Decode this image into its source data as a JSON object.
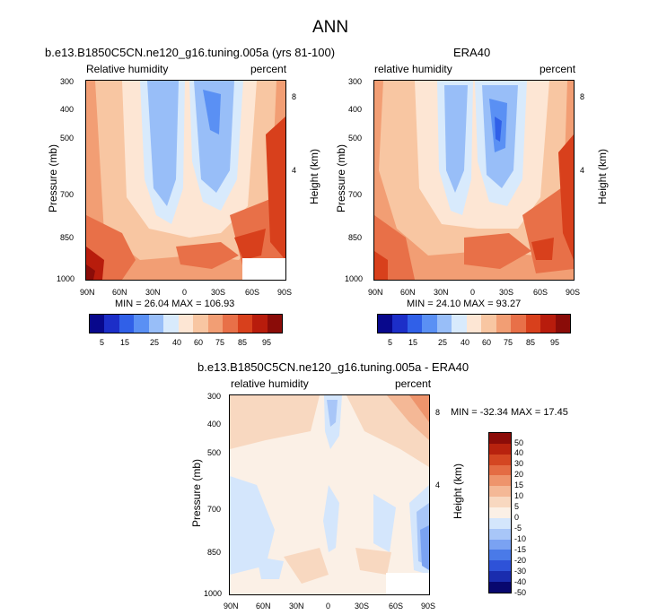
{
  "figure_title": "ANN",
  "colors": {
    "abs_scale": [
      "#08088c",
      "#1c2ec8",
      "#3060e8",
      "#5a90f4",
      "#98bef8",
      "#d8eafc",
      "#fde6d4",
      "#f8c6a2",
      "#f29e74",
      "#e87048",
      "#d8401c",
      "#b81c0c",
      "#8a0c08"
    ],
    "diff_scale": [
      "#08086e",
      "#1a2cae",
      "#2e52d8",
      "#4a7ae8",
      "#7aa2f2",
      "#a8c6f8",
      "#d4e6fc",
      "#fbf0e6",
      "#f8d8c0",
      "#f4b896",
      "#ee946c",
      "#e46c44",
      "#d44622",
      "#b8220e",
      "#8c0c08"
    ]
  },
  "chart_data": [
    {
      "type": "heatmap",
      "panel": "model",
      "title": "b.e13.B1850C5CN.ne120_g16.tuning.005a (yrs 81-100)",
      "left_label": "Relative humidity",
      "right_label": "percent",
      "ylabel": "Pressure (mb)",
      "ylabel_right": "Height (km)",
      "x_ticks": [
        "90N",
        "60N",
        "30N",
        "0",
        "30S",
        "60S",
        "90S"
      ],
      "y_ticks": [
        "300",
        "400",
        "500",
        "700",
        "850",
        "1000"
      ],
      "height_ticks": [
        "8",
        "4"
      ],
      "ylim": [
        1000,
        300
      ],
      "min_text": "MIN = 26.04   MAX = 106.93",
      "colorbar_labels": [
        "5",
        "15",
        "25",
        "40",
        "60",
        "75",
        "85",
        "95"
      ]
    },
    {
      "type": "heatmap",
      "panel": "obs",
      "title": "ERA40",
      "left_label": "relative humidity",
      "right_label": "percent",
      "ylabel": "Pressure (mb)",
      "ylabel_right": "Height (km)",
      "x_ticks": [
        "90N",
        "60N",
        "30N",
        "0",
        "30S",
        "60S",
        "90S"
      ],
      "y_ticks": [
        "300",
        "400",
        "500",
        "700",
        "850",
        "1000"
      ],
      "height_ticks": [
        "8",
        "4"
      ],
      "ylim": [
        1000,
        300
      ],
      "min_text": "MIN = 24.10   MAX = 93.27",
      "colorbar_labels": [
        "5",
        "15",
        "25",
        "40",
        "60",
        "75",
        "85",
        "95"
      ]
    },
    {
      "type": "heatmap",
      "panel": "difference",
      "title": "b.e13.B1850C5CN.ne120_g16.tuning.005a - ERA40",
      "left_label": "relative humidity",
      "right_label": "percent",
      "ylabel": "Pressure (mb)",
      "ylabel_right": "Height (km)",
      "x_ticks": [
        "90N",
        "60N",
        "30N",
        "0",
        "30S",
        "60S",
        "90S"
      ],
      "y_ticks": [
        "300",
        "400",
        "500",
        "700",
        "850",
        "1000"
      ],
      "height_ticks": [
        "8",
        "4"
      ],
      "ylim": [
        1000,
        300
      ],
      "min_text": "MIN = -32.34   MAX =  17.45",
      "colorbar_labels": [
        "50",
        "40",
        "30",
        "20",
        "15",
        "10",
        "5",
        "0",
        "-5",
        "-10",
        "-15",
        "-20",
        "-30",
        "-40",
        "-50"
      ]
    }
  ]
}
